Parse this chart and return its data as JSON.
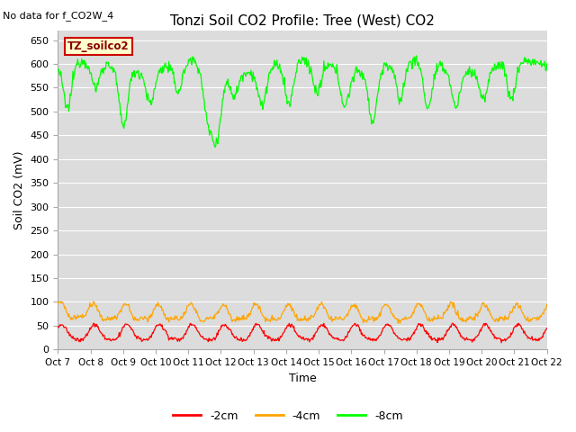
{
  "title": "Tonzi Soil CO2 Profile: Tree (West) CO2",
  "no_data_text": "No data for f_CO2W_4",
  "ylabel": "Soil CO2 (mV)",
  "xlabel": "Time",
  "ylim": [
    0,
    670
  ],
  "yticks": [
    0,
    50,
    100,
    150,
    200,
    250,
    300,
    350,
    400,
    450,
    500,
    550,
    600,
    650
  ],
  "xtick_labels": [
    "Oct 7",
    "Oct 8",
    "Oct 9",
    "Oct 10",
    "Oct 11",
    "Oct 12",
    "Oct 13",
    "Oct 14",
    "Oct 15",
    "Oct 16",
    "Oct 17",
    "Oct 18",
    "Oct 19",
    "Oct 20",
    "Oct 21",
    "Oct 22"
  ],
  "legend_label_box": "TZ_soilco2",
  "legend_box_facecolor": "#ffffcc",
  "legend_box_edgecolor": "#cc0000",
  "bg_color": "#dcdcdc",
  "line_color_2cm": "#ff0000",
  "line_color_4cm": "#ffa500",
  "line_color_8cm": "#00ff00",
  "legend_entries": [
    "-2cm",
    "-4cm",
    "-8cm"
  ],
  "n_days": 15,
  "n_points": 720,
  "figwidth": 6.4,
  "figheight": 4.8,
  "dpi": 100
}
